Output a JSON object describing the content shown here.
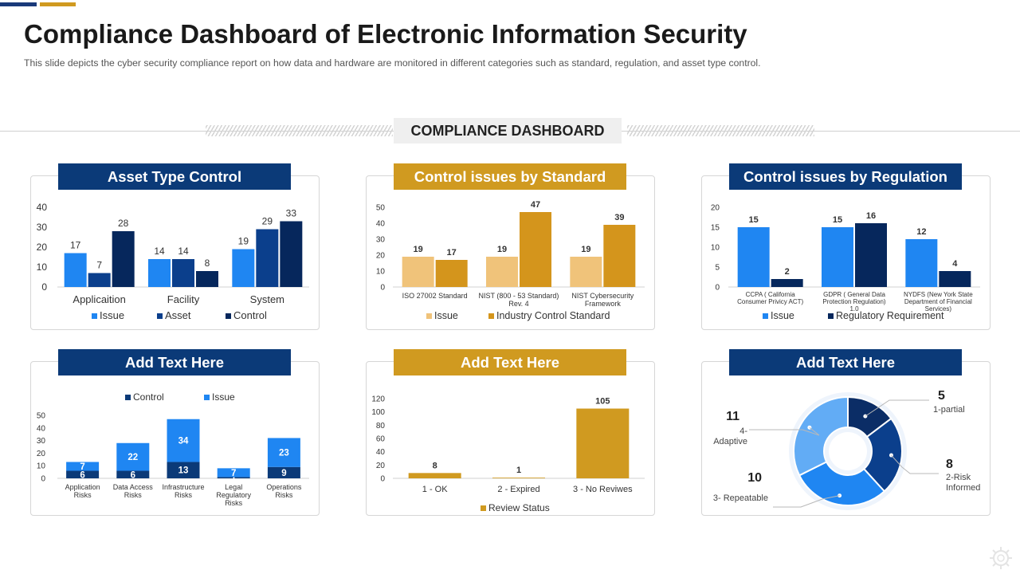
{
  "header": {
    "title": "Compliance Dashboard of Electronic Information Security",
    "subtitle": "This slide depicts the cyber security compliance report on how data and hardware  are monitored in different  categories such as standard, regulation, and asset type control.",
    "section_label": "COMPLIANCE DASHBOARD"
  },
  "colors": {
    "navy": "#0b3a78",
    "gold": "#d09a20",
    "light_blue": "#1f86f2",
    "blue": "#0b3f8c",
    "dark_navy": "#06275c",
    "light_gold": "#f0c37a"
  },
  "panels": {
    "asset": {
      "title": "Asset Type Control"
    },
    "standard": {
      "title": "Control issues by Standard"
    },
    "regulation": {
      "title": "Control issues by Regulation"
    },
    "risks": {
      "title": "Add Text Here"
    },
    "review": {
      "title": "Add Text Here"
    },
    "donut": {
      "title": "Add Text Here"
    }
  },
  "chart_data": [
    {
      "id": "asset",
      "type": "bar",
      "categories": [
        "Applicaition",
        "Facility",
        "System"
      ],
      "series": [
        {
          "name": "Issue",
          "values": [
            17,
            14,
            19
          ],
          "color": "#1f86f2"
        },
        {
          "name": "Asset",
          "values": [
            7,
            14,
            29
          ],
          "color": "#0b3f8c"
        },
        {
          "name": "Control",
          "values": [
            28,
            8,
            33
          ],
          "color": "#06275c"
        }
      ],
      "ylim": [
        0,
        40
      ],
      "yticks": [
        0,
        10,
        20,
        30,
        40
      ],
      "legend": "bottom"
    },
    {
      "id": "standard",
      "type": "bar",
      "categories": [
        "ISO 27002 Standard",
        "NIST (800 - 53 Standard) Rev. 4",
        "NIST Cybersecurity Framework"
      ],
      "series": [
        {
          "name": "Issue",
          "values": [
            19,
            19,
            19
          ],
          "color": "#f0c37a"
        },
        {
          "name": "Industry Control Standard",
          "values": [
            17,
            47,
            39
          ],
          "color": "#d4951c"
        }
      ],
      "ylim": [
        0,
        50
      ],
      "yticks": [
        0,
        10,
        20,
        30,
        40,
        50
      ],
      "legend": "bottom"
    },
    {
      "id": "regulation",
      "type": "bar",
      "categories": [
        "CCPA ( California Consumer Privicy ACT)",
        "GDPR ( General Data Protection Regulation) 1.0",
        "NYDFS (New York State Department of Financial Services)"
      ],
      "series": [
        {
          "name": "Issue",
          "values": [
            15,
            15,
            12
          ],
          "color": "#1f86f2"
        },
        {
          "name": "Regulatory Requirement",
          "values": [
            2,
            16,
            4
          ],
          "color": "#06275c"
        }
      ],
      "ylim": [
        0,
        20
      ],
      "yticks": [
        0,
        5,
        10,
        15,
        20
      ],
      "legend": "bottom"
    },
    {
      "id": "risks",
      "type": "bar",
      "stacked": true,
      "categories": [
        "Application Risks",
        "Data Access Risks",
        "Infrastructure Risks",
        "Legal Regulatory Risks",
        "Operations Risks"
      ],
      "series": [
        {
          "name": "Control",
          "values": [
            6,
            6,
            13,
            1,
            9
          ],
          "color": "#0b3a78"
        },
        {
          "name": "Issue",
          "values": [
            7,
            22,
            34,
            7,
            23
          ],
          "color": "#1f86f2"
        }
      ],
      "ylim": [
        0,
        50
      ],
      "yticks": [
        0,
        10,
        20,
        30,
        40,
        50
      ],
      "legend": "top"
    },
    {
      "id": "review",
      "type": "bar",
      "categories": [
        "1 - OK",
        "2 - Expired",
        "3 - No Reviwes"
      ],
      "series": [
        {
          "name": "Review Status",
          "values": [
            8,
            1,
            105
          ],
          "color": "#d09a20"
        }
      ],
      "ylim": [
        0,
        120
      ],
      "yticks": [
        0,
        20,
        40,
        60,
        80,
        100,
        120
      ],
      "legend": "bottom"
    },
    {
      "id": "maturity",
      "type": "pie",
      "donut": true,
      "slices": [
        {
          "label": "1-partial",
          "value": 5,
          "color": "#0b2d66"
        },
        {
          "label": "2-Risk Informed",
          "value": 8,
          "color": "#0b3f8c"
        },
        {
          "label": "3- Repeatable",
          "value": 10,
          "color": "#1f86f2"
        },
        {
          "label": "4- Adaptive",
          "value": 11,
          "color": "#62acf5"
        }
      ]
    }
  ]
}
